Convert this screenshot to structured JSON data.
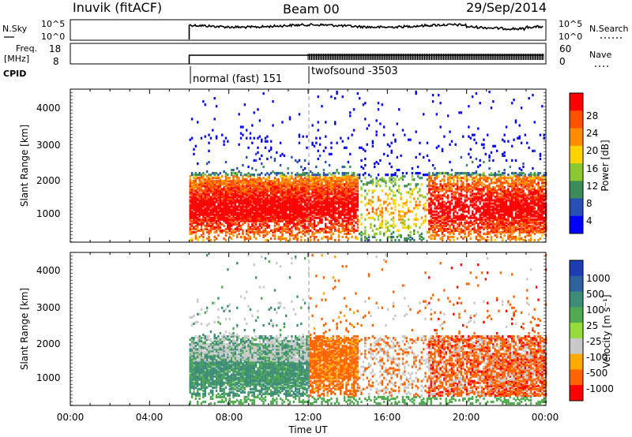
{
  "header": {
    "title": "Inuvik (fitACF)",
    "beam": "Beam 00",
    "date": "29/Sep/2014"
  },
  "summary": {
    "nsky_label": "N.Sky",
    "nsky_ticks": [
      "10^5",
      "10^0"
    ],
    "nsearch_label": "N.Search",
    "nsearch_ticks": [
      "10^5",
      "10^0"
    ],
    "freq_label": "Freq.",
    "freq_unit": "[MHz]",
    "freq_ticks": [
      "18",
      "8"
    ],
    "nave_label": "Nave",
    "nave_ticks": [
      "60",
      "0"
    ],
    "cpid_label": "CPID",
    "cpid_segments": [
      {
        "label": "normal (fast) 151",
        "start_hour": 6.0
      },
      {
        "label": "twofsound -3503",
        "start_hour": 12.0
      }
    ]
  },
  "chart_data": [
    {
      "type": "heatmap",
      "title": "",
      "ylabel": "Slant Range [km]",
      "xlabel": "",
      "x_range_hours": [
        0,
        24
      ],
      "ylim": [
        180,
        4500
      ],
      "y_ticks": [
        "1000",
        "2000",
        "3000",
        "4000"
      ],
      "colorbar": {
        "label": "Power [dB]",
        "ticks": [
          "4",
          "8",
          "12",
          "16",
          "20",
          "24",
          "28"
        ],
        "colors": [
          "#0000ff",
          "#2850b4",
          "#3c8c5a",
          "#8cc832",
          "#ffd200",
          "#ff8c00",
          "#ff5000",
          "#ff0000"
        ]
      },
      "data_start_hour": 6.0
    },
    {
      "type": "heatmap",
      "title": "",
      "ylabel": "Slant Range [km]",
      "xlabel": "Time UT",
      "x_range_hours": [
        0,
        24
      ],
      "ylim": [
        180,
        4500
      ],
      "y_ticks": [
        "1000",
        "2000",
        "3000",
        "4000"
      ],
      "x_ticks": [
        "00:00",
        "04:00",
        "08:00",
        "12:00",
        "16:00",
        "20:00",
        "00:00"
      ],
      "colorbar": {
        "label": "Velocity [m s⁻¹]",
        "ticks": [
          "1000",
          "500",
          "100",
          "25",
          "-25",
          "-100",
          "-500",
          "-1000"
        ],
        "colors": [
          "#1e3cb4",
          "#2d64a0",
          "#3c8c78",
          "#50aa50",
          "#96dc3c",
          "#c8c8c8",
          "#ffaa00",
          "#ff6400",
          "#ff0000"
        ]
      },
      "data_start_hour": 6.0
    }
  ]
}
